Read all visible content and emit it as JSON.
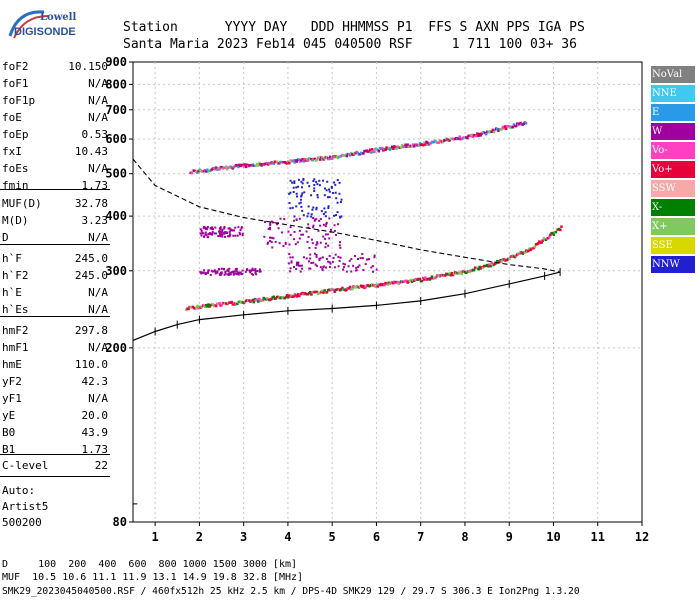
{
  "logo": {
    "line1": "Lowell",
    "line2": "DIGISONDE"
  },
  "header": {
    "row1": "Station      YYYY DAY   DDD HHMMSS P1  FFS S AXN PPS IGA PS",
    "row2": "Santa Maria 2023 Feb14 045 040500 RSF     1 711 100 03+ 36"
  },
  "sidebar": {
    "group1": [
      {
        "k": "foF2",
        "v": "10.150"
      },
      {
        "k": "foF1",
        "v": "N/A"
      },
      {
        "k": "foF1p",
        "v": "N/A"
      },
      {
        "k": "foE",
        "v": "N/A"
      },
      {
        "k": "foEp",
        "v": "0.53"
      },
      {
        "k": "fxI",
        "v": "10.43"
      },
      {
        "k": "foEs",
        "v": "N/A"
      },
      {
        "k": "fmin",
        "v": "1.73"
      }
    ],
    "group2": [
      {
        "k": "MUF(D)",
        "v": "32.78"
      },
      {
        "k": "M(D)",
        "v": "3.23"
      },
      {
        "k": "D",
        "v": "N/A"
      }
    ],
    "group3": [
      {
        "k": "h`F",
        "v": "245.0"
      },
      {
        "k": "h`F2",
        "v": "245.0"
      },
      {
        "k": "h`E",
        "v": "N/A"
      },
      {
        "k": "h`Es",
        "v": "N/A"
      }
    ],
    "group4": [
      {
        "k": "hmF2",
        "v": "297.8"
      },
      {
        "k": "hmF1",
        "v": "N/A"
      },
      {
        "k": "hmE",
        "v": "110.0"
      },
      {
        "k": "yF2",
        "v": "42.3"
      },
      {
        "k": "yF1",
        "v": "N/A"
      },
      {
        "k": "yE",
        "v": "20.0"
      },
      {
        "k": "B0",
        "v": "43.9"
      },
      {
        "k": "B1",
        "v": "1.73"
      }
    ],
    "group5": [
      {
        "k": "C-level",
        "v": "22"
      }
    ],
    "auto": [
      "Auto:",
      "Artist5",
      "500200"
    ]
  },
  "footer": {
    "d_row": "D     100  200  400  600  800 1000 1500 3000 [km]",
    "muf_row": "MUF  10.5 10.6 11.1 11.9 13.1 14.9 19.8 32.8 [MHz]",
    "info": "SMK29_2023045040500.RSF / 460fx512h 25 kHz 2.5 km / DPS-4D SMK29 129 / 29.7 S 306.3 E Ion2Png 1.3.20"
  },
  "chart_data": {
    "type": "scatter",
    "xlim": [
      0.5,
      12
    ],
    "ylim": [
      80,
      900
    ],
    "yscale": "log",
    "xticks": [
      1,
      2,
      3,
      4,
      5,
      6,
      7,
      8,
      9,
      10,
      11,
      12
    ],
    "yticks": [
      80,
      200,
      300,
      400,
      500,
      600,
      700,
      800,
      900
    ],
    "grid": "dashed-gray",
    "legend_position": "right",
    "legend": [
      {
        "name": "NoVal",
        "color": "#808080"
      },
      {
        "name": "NNE",
        "color": "#40c8f0"
      },
      {
        "name": "E",
        "color": "#2a9ae8"
      },
      {
        "name": "W",
        "color": "#a000a0"
      },
      {
        "name": "Vo-",
        "color": "#ff40c0"
      },
      {
        "name": "Vo+",
        "color": "#e8003a"
      },
      {
        "name": "SSW",
        "color": "#f8a8a8"
      },
      {
        "name": "X-",
        "color": "#008000"
      },
      {
        "name": "X+",
        "color": "#80c860"
      },
      {
        "name": "SSE",
        "color": "#d8d800"
      },
      {
        "name": "NNW",
        "color": "#2020d0"
      }
    ],
    "o_trace": [
      [
        1.7,
        247
      ],
      [
        2,
        250
      ],
      [
        3,
        256
      ],
      [
        4,
        264
      ],
      [
        5,
        272
      ],
      [
        6,
        280
      ],
      [
        7,
        288
      ],
      [
        8,
        300
      ],
      [
        8.5,
        310
      ],
      [
        9,
        322
      ],
      [
        9.5,
        340
      ],
      [
        10,
        368
      ],
      [
        10.2,
        380
      ]
    ],
    "upper_trace": [
      [
        1.8,
        508
      ],
      [
        2,
        510
      ],
      [
        3,
        525
      ],
      [
        4,
        535
      ],
      [
        5,
        548
      ],
      [
        6,
        570
      ],
      [
        7,
        588
      ],
      [
        8,
        610
      ],
      [
        8.5,
        625
      ],
      [
        9,
        645
      ],
      [
        9.4,
        658
      ]
    ],
    "profile_fit": [
      [
        0.5,
        208
      ],
      [
        1,
        218
      ],
      [
        1.5,
        226
      ],
      [
        2,
        232
      ],
      [
        3,
        238
      ],
      [
        4,
        243
      ],
      [
        5,
        246
      ],
      [
        6,
        250
      ],
      [
        7,
        256
      ],
      [
        8,
        266
      ],
      [
        9,
        280
      ],
      [
        9.8,
        292
      ],
      [
        10.15,
        298
      ]
    ],
    "density_profile": [
      [
        0.5,
        540
      ],
      [
        1,
        470
      ],
      [
        2,
        420
      ],
      [
        3,
        397
      ],
      [
        4,
        382
      ],
      [
        5,
        368
      ],
      [
        6,
        352
      ],
      [
        7,
        335
      ],
      [
        8,
        322
      ],
      [
        9,
        310
      ],
      [
        9.8,
        303
      ],
      [
        10.15,
        298
      ]
    ],
    "clusters": [
      {
        "x": [
          2,
          3
        ],
        "y": [
          360,
          380
        ],
        "color": "#a000a0"
      },
      {
        "x": [
          2,
          3.4
        ],
        "y": [
          295,
          305
        ],
        "color": "#a000a0"
      },
      {
        "x": [
          4,
          6
        ],
        "y": [
          300,
          330
        ],
        "color": "#a000a0"
      },
      {
        "x": [
          3.4,
          5.2
        ],
        "y": [
          340,
          400
        ],
        "color": "#a000a0"
      },
      {
        "x": [
          4,
          5.2
        ],
        "y": [
          400,
          490
        ],
        "color": "#2020d0"
      }
    ]
  }
}
